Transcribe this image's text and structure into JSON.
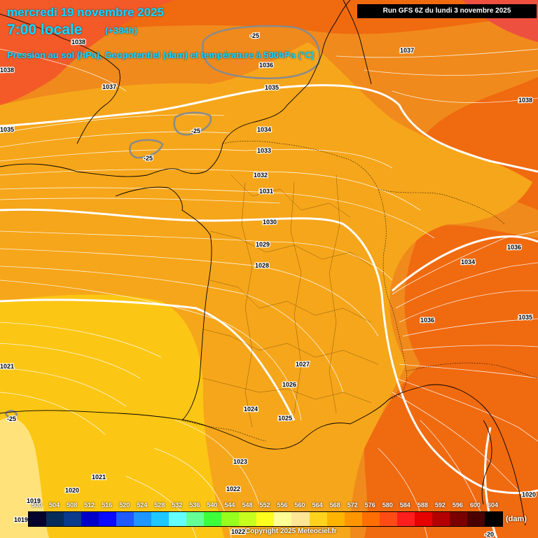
{
  "header": {
    "date": "mercredi 19 novembre 2025",
    "time": "7:00 locale",
    "offset": "(+384h)",
    "subtitle": "Pression au sol (hPa), Geopotentiel (dam) et température à 500hPa (°C)",
    "run": "Run GFS 6Z du lundi 3 novembre 2025"
  },
  "legend": {
    "unit": "(dam)",
    "ticks": [
      "500",
      "504",
      "508",
      "512",
      "516",
      "520",
      "524",
      "528",
      "532",
      "536",
      "540",
      "544",
      "548",
      "552",
      "556",
      "560",
      "564",
      "568",
      "572",
      "576",
      "580",
      "584",
      "588",
      "592",
      "596",
      "600",
      "604"
    ],
    "colors": [
      "#03032e",
      "#062c5a",
      "#0a3a8c",
      "#0000c8",
      "#0a0aff",
      "#1e5aff",
      "#1e96ff",
      "#1ec8ff",
      "#64ffff",
      "#64ff96",
      "#3cff3c",
      "#96ff1e",
      "#c8ff1e",
      "#ffff1e",
      "#ffff96",
      "#ffe696",
      "#ffd21e",
      "#ffb400",
      "#ff9600",
      "#ff6e00",
      "#ff4b14",
      "#ff1e1e",
      "#e60000",
      "#b40000",
      "#7a0000",
      "#4b0000",
      "#000000"
    ]
  },
  "pressure_labels": [
    "1038",
    "1038",
    "1037",
    "1037",
    "1035",
    "1036",
    "1035",
    "1038",
    "1034",
    "1033",
    "1032",
    "1031",
    "1030",
    "1029",
    "1028",
    "1036",
    "1034",
    "1036",
    "1035",
    "1027",
    "1026",
    "1024",
    "1025",
    "1023",
    "1022",
    "1021",
    "1021",
    "1020",
    "1019",
    "1019",
    "1020",
    "1022"
  ],
  "temperature_labels": [
    "-25",
    "-25",
    "-25",
    "-25",
    "-20"
  ],
  "copyright": "Copyright 2025 Meteociel.fr",
  "colors": {
    "title": "#12d8ff",
    "field_deep_orange": "#f06a10",
    "field_orange": "#f08a1c",
    "field_light_orange": "#f6a61a",
    "field_yellow": "#fcc614",
    "field_light_yellow": "#ffe27a",
    "field_red": "#ee5040"
  }
}
